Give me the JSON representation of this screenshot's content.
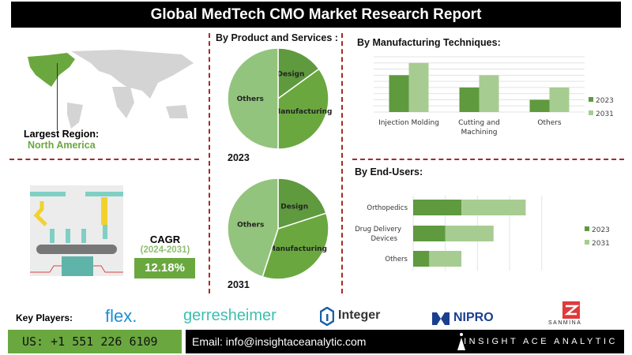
{
  "header": {
    "title": "Global MedTech CMO Market Research Report"
  },
  "region": {
    "label": "Largest Region:",
    "value": "North America"
  },
  "cagr": {
    "label": "CAGR",
    "period": "(2024-2031)",
    "value": "12.18%"
  },
  "colors": {
    "dark_green": "#5f9a3e",
    "light_green": "#a7cc92",
    "mid_green": "#6aa83f",
    "pie_others": "#93c47d",
    "accent_red": "#a52a2a"
  },
  "chart_data": [
    {
      "type": "pie",
      "title": "By Product and Services :",
      "year": "2023",
      "slices": [
        {
          "label": "Design",
          "value": 15,
          "color": "#5f9a3e"
        },
        {
          "label": "Manufacturing",
          "value": 35,
          "color": "#6aa83f"
        },
        {
          "label": "Others",
          "value": 50,
          "color": "#93c47d"
        }
      ]
    },
    {
      "type": "pie",
      "year": "2031",
      "slices": [
        {
          "label": "Design",
          "value": 20,
          "color": "#5f9a3e"
        },
        {
          "label": "Manufacturing",
          "value": 35,
          "color": "#6aa83f"
        },
        {
          "label": "Others",
          "value": 45,
          "color": "#93c47d"
        }
      ]
    },
    {
      "type": "bar",
      "title": "By  Manufacturing Techniques:",
      "categories": [
        "Injection Molding",
        "Cutting and Machining",
        "Others"
      ],
      "series": [
        {
          "name": "2023",
          "values": [
            6,
            4,
            2
          ],
          "color": "#5f9a3e"
        },
        {
          "name": "2031",
          "values": [
            8,
            6,
            4
          ],
          "color": "#a7cc92"
        }
      ],
      "ylim": [
        0,
        9
      ],
      "grid": true,
      "legend": "right"
    },
    {
      "type": "bar",
      "orientation": "horizontal-stacked",
      "title": "By End-Users:",
      "categories": [
        "Orthopedics",
        "Drug Delivery Devices",
        "Others"
      ],
      "series": [
        {
          "name": "2023",
          "values": [
            1.5,
            1.0,
            0.5
          ],
          "color": "#5f9a3e"
        },
        {
          "name": "2031",
          "values": [
            2.0,
            1.5,
            1.0
          ],
          "color": "#a7cc92"
        }
      ],
      "xlim": [
        0,
        4
      ],
      "grid": true,
      "legend": "right"
    }
  ],
  "key_players": {
    "label": "Key Players:",
    "companies": [
      "flex.",
      "gerresheimer",
      "Integer",
      "NIPRO",
      "SANMINA"
    ]
  },
  "contact": {
    "phone": "US: +1 551 226 6109",
    "email": "Email: info@insightaceanalytic.com",
    "brand": "INSIGHT ACE ANALYTIC"
  }
}
